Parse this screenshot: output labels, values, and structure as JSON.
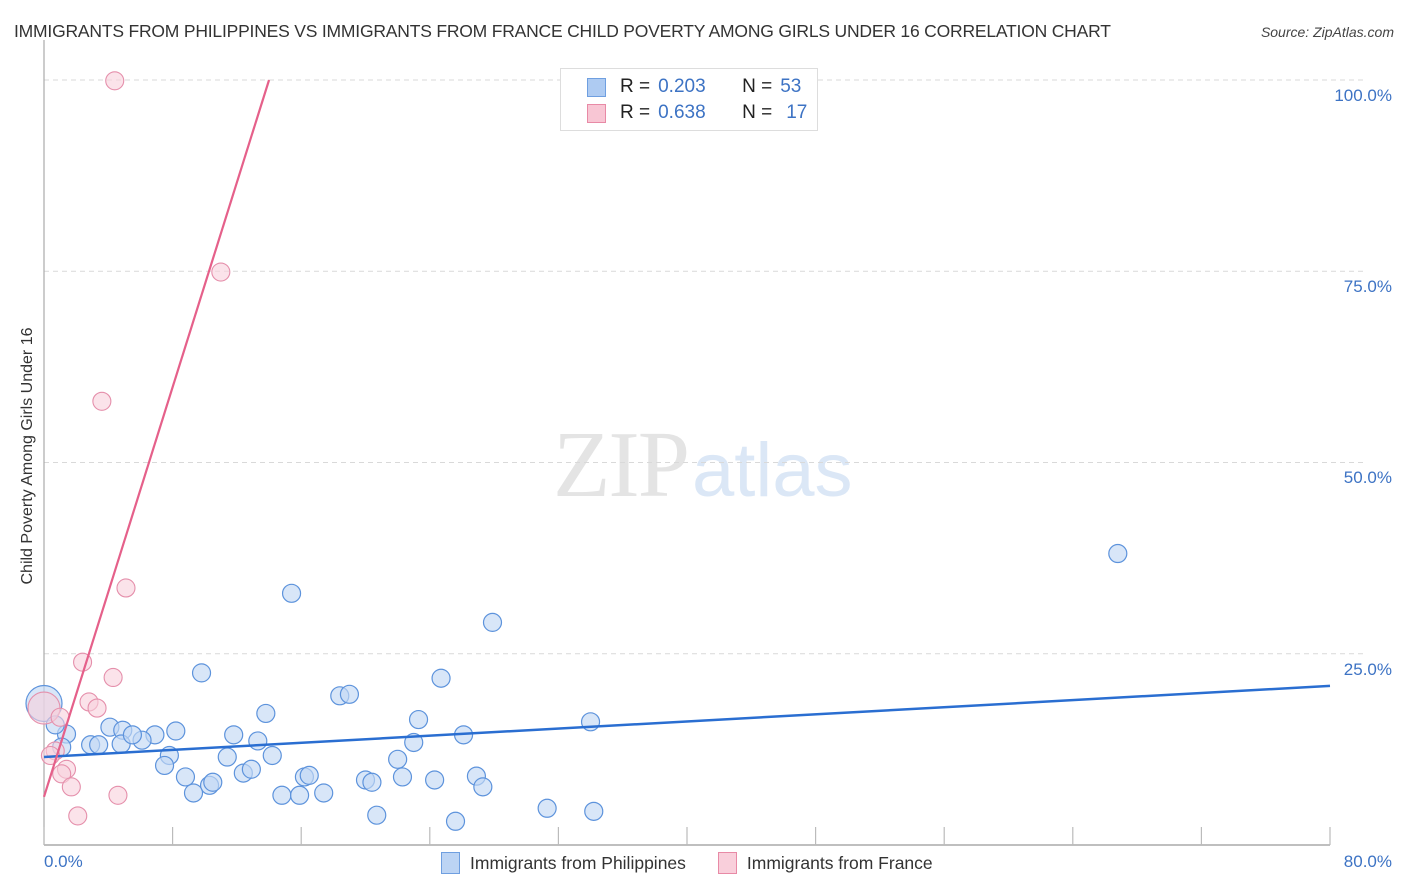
{
  "header": {
    "title": "IMMIGRANTS FROM PHILIPPINES VS IMMIGRANTS FROM FRANCE CHILD POVERTY AMONG GIRLS UNDER 16 CORRELATION CHART",
    "source": "Source: ZipAtlas.com"
  },
  "watermark": {
    "zip": "ZIP",
    "atlas": "atlas"
  },
  "legend": {
    "rows": [
      {
        "r_label": "R =",
        "r_value": "0.203",
        "n_label": "N =",
        "n_value": "53",
        "color": "#aecbf2",
        "border": "#6f9fe0"
      },
      {
        "r_label": "R =",
        "r_value": "0.638",
        "n_label": "N =",
        "n_value": "17",
        "color": "#f8c6d4",
        "border": "#e88aa6"
      }
    ]
  },
  "bottom_legend": [
    {
      "label": "Immigrants from Philippines",
      "color": "#bcd4f4",
      "border": "#6f9fe0"
    },
    {
      "label": "Immigrants from France",
      "color": "#f9cfdb",
      "border": "#e88aa6"
    }
  ],
  "axes": {
    "y_ticks": [
      "100.0%",
      "75.0%",
      "50.0%",
      "25.0%"
    ],
    "x_min_label": "0.0%",
    "x_max_label": "80.0%",
    "ylabel": "Child Poverty Among Girls Under 16"
  },
  "colors": {
    "blue_fill": "#c3d8f5",
    "blue_stroke": "#5d93dc",
    "blue_line": "#2a6ed1",
    "pink_fill": "#f9d1dc",
    "pink_stroke": "#e58fab",
    "pink_line": "#e5608a",
    "tick_label": "#3d73c4"
  },
  "chart_data": {
    "type": "scatter",
    "title": "IMMIGRANTS FROM PHILIPPINES VS IMMIGRANTS FROM FRANCE CHILD POVERTY AMONG GIRLS UNDER 16 CORRELATION CHART",
    "xlabel": "",
    "ylabel": "Child Poverty Among Girls Under 16",
    "xlim": [
      0,
      80
    ],
    "ylim": [
      0,
      100
    ],
    "x_tick_labels": [
      "0.0%",
      "80.0%"
    ],
    "y_tick_labels": [
      "25.0%",
      "50.0%",
      "75.0%",
      "100.0%"
    ],
    "grid": "horizontal dashed",
    "legend_position": "top-center and bottom",
    "series": [
      {
        "name": "Immigrants from Philippines",
        "R": 0.203,
        "N": 53,
        "trendline": {
          "x": [
            0,
            80
          ],
          "y": [
            11.5,
            20.8
          ]
        },
        "points": [
          [
            66.8,
            38.1
          ],
          [
            15.4,
            32.9
          ],
          [
            27.9,
            29.1
          ],
          [
            9.8,
            22.5
          ],
          [
            24.7,
            21.8
          ],
          [
            18.4,
            19.5
          ],
          [
            19.0,
            19.7
          ],
          [
            13.8,
            17.2
          ],
          [
            23.3,
            16.4
          ],
          [
            34.0,
            16.1
          ],
          [
            0.0,
            18.5
          ],
          [
            1.4,
            14.5
          ],
          [
            4.1,
            15.4
          ],
          [
            4.9,
            15.0
          ],
          [
            8.2,
            14.9
          ],
          [
            6.9,
            14.4
          ],
          [
            11.8,
            14.4
          ],
          [
            6.1,
            13.7
          ],
          [
            13.3,
            13.6
          ],
          [
            26.1,
            14.4
          ],
          [
            23.0,
            13.4
          ],
          [
            2.9,
            13.1
          ],
          [
            3.4,
            13.1
          ],
          [
            1.1,
            12.8
          ],
          [
            4.8,
            13.2
          ],
          [
            7.8,
            11.7
          ],
          [
            14.2,
            11.7
          ],
          [
            22.0,
            11.2
          ],
          [
            7.5,
            10.4
          ],
          [
            12.4,
            9.4
          ],
          [
            12.9,
            9.9
          ],
          [
            8.8,
            8.9
          ],
          [
            16.2,
            8.9
          ],
          [
            10.3,
            7.8
          ],
          [
            20.0,
            8.5
          ],
          [
            20.4,
            8.2
          ],
          [
            22.3,
            8.9
          ],
          [
            24.3,
            8.5
          ],
          [
            26.9,
            9.0
          ],
          [
            27.3,
            7.6
          ],
          [
            9.3,
            6.8
          ],
          [
            14.8,
            6.5
          ],
          [
            15.9,
            6.5
          ],
          [
            17.4,
            6.8
          ],
          [
            31.3,
            4.8
          ],
          [
            34.2,
            4.4
          ],
          [
            20.7,
            3.9
          ],
          [
            25.6,
            3.1
          ],
          [
            0.7,
            15.7
          ],
          [
            5.5,
            14.4
          ],
          [
            11.4,
            11.5
          ],
          [
            16.5,
            9.1
          ],
          [
            10.5,
            8.2
          ]
        ]
      },
      {
        "name": "Immigrants from France",
        "R": 0.638,
        "N": 17,
        "trendline": {
          "x": [
            0,
            14.0
          ],
          "y": [
            6.3,
            100
          ]
        },
        "points": [
          [
            4.4,
            99.9
          ],
          [
            11.0,
            74.9
          ],
          [
            3.6,
            58.0
          ],
          [
            5.1,
            33.6
          ],
          [
            2.4,
            23.9
          ],
          [
            4.3,
            21.9
          ],
          [
            2.8,
            18.7
          ],
          [
            3.3,
            17.9
          ],
          [
            0.0,
            17.9
          ],
          [
            0.7,
            12.3
          ],
          [
            1.4,
            9.9
          ],
          [
            1.1,
            9.3
          ],
          [
            1.7,
            7.6
          ],
          [
            4.6,
            6.5
          ],
          [
            2.1,
            3.8
          ],
          [
            0.4,
            11.7
          ],
          [
            1.0,
            16.7
          ]
        ]
      }
    ]
  }
}
